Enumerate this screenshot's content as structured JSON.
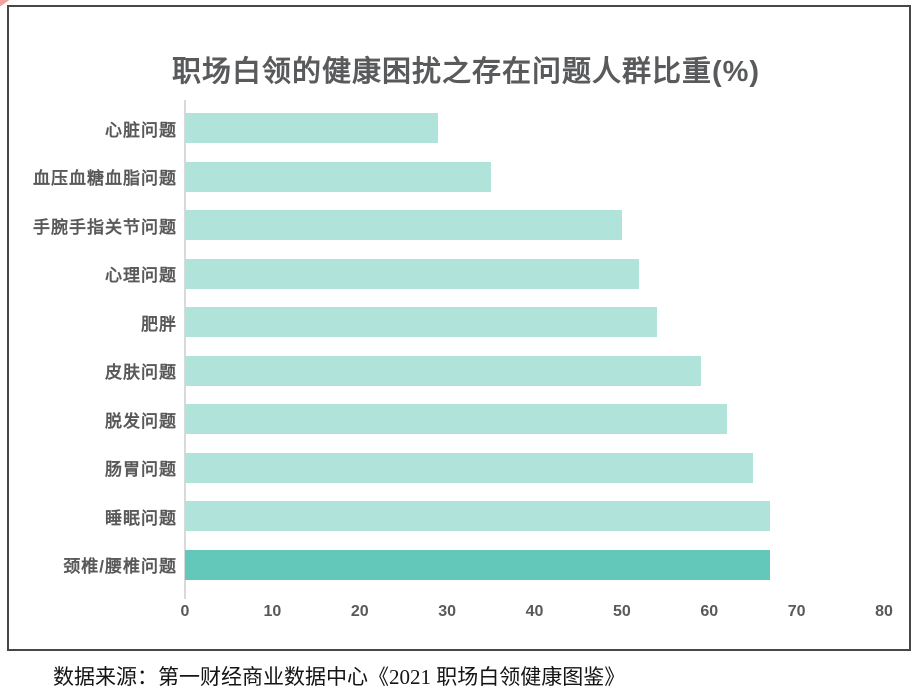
{
  "chart_data": {
    "type": "bar",
    "orientation": "horizontal",
    "title": "职场白领的健康困扰之存在问题人群比重(%)",
    "categories": [
      "心脏问题",
      "血压血糖血脂问题",
      "手腕手指关节问题",
      "心理问题",
      "肥胖",
      "皮肤问题",
      "脱发问题",
      "肠胃问题",
      "睡眠问题",
      "颈椎/腰椎问题"
    ],
    "values": [
      29,
      35,
      50,
      52,
      54,
      59,
      62,
      65,
      67,
      67
    ],
    "xlabel": "",
    "ylabel": "",
    "xlim": [
      0,
      80
    ],
    "x_ticks": [
      0,
      10,
      20,
      30,
      40,
      50,
      60,
      70,
      80
    ],
    "grid": "off",
    "legend": "none",
    "bar_color": "#b0e4da",
    "highlight_color": "#63c8ba",
    "highlight_index": 9,
    "title_color": "#595a5c",
    "axis_line_color": "#d9d9d9"
  },
  "footer": {
    "source": "数据来源：第一财经商业数据中心《2021 职场白领健康图鉴》"
  }
}
